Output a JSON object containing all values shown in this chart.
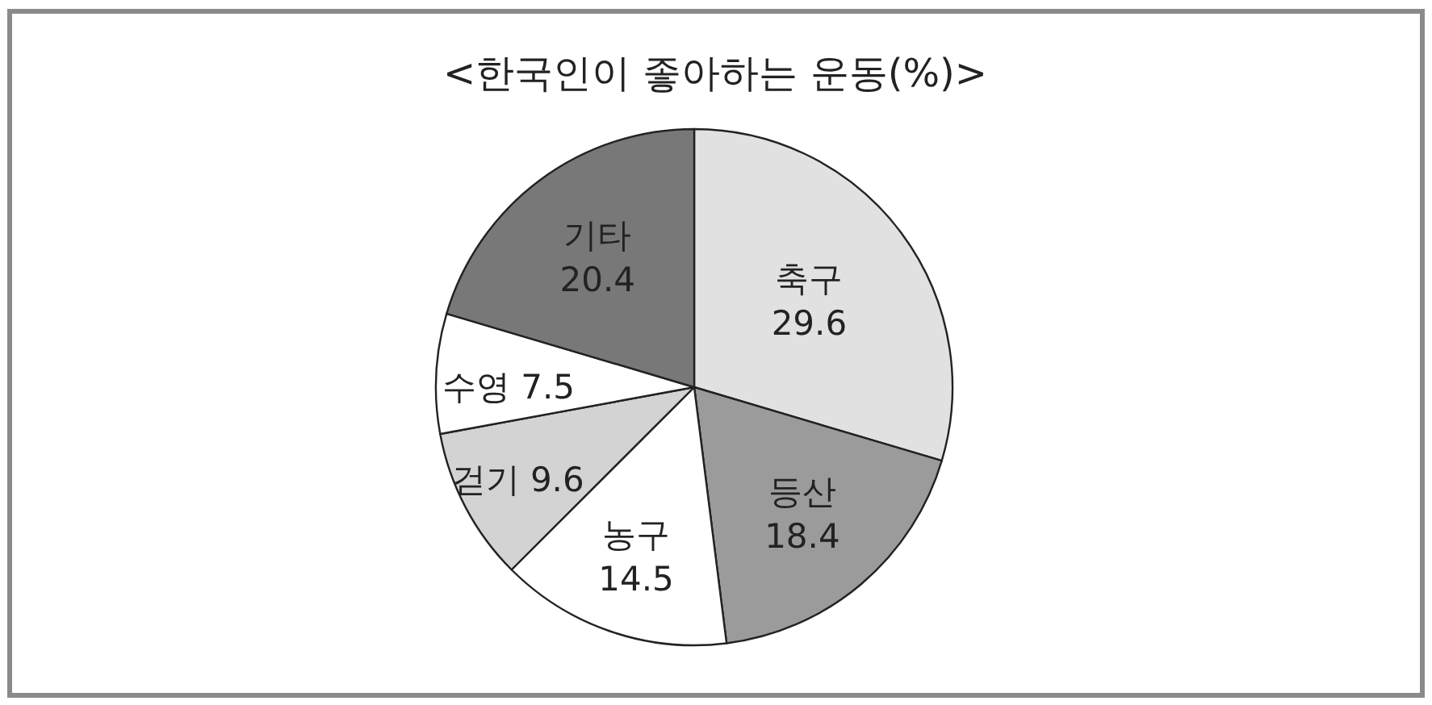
{
  "chart_data": {
    "type": "pie",
    "title": "<한국인이 좋아하는 운동(%)>",
    "categories": [
      "축구",
      "등산",
      "농구",
      "걷기",
      "수영",
      "기타"
    ],
    "values": [
      29.6,
      18.4,
      14.5,
      9.6,
      7.5,
      20.4
    ],
    "colors": [
      "#e1e1e1",
      "#9b9b9b",
      "#ffffff",
      "#d3d3d3",
      "#ffffff",
      "#787878"
    ],
    "data_labels": true
  }
}
